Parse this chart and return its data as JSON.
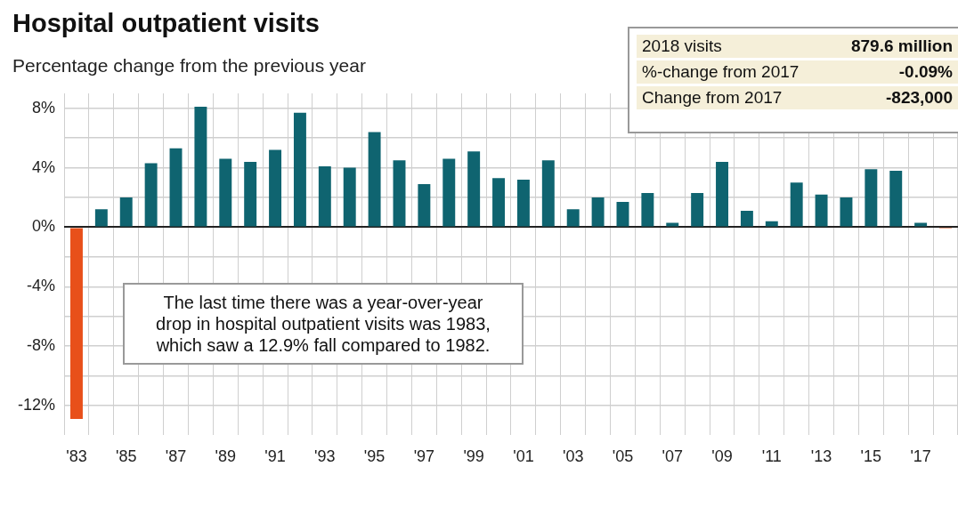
{
  "chart_data": {
    "type": "bar",
    "title": "Hospital outpatient visits",
    "subtitle": "Percentage change from the previous year",
    "categories": [
      "'83",
      null,
      "'85",
      null,
      "'87",
      null,
      "'89",
      null,
      "'91",
      null,
      "'93",
      null,
      "'95",
      null,
      "'97",
      null,
      "'99",
      null,
      "'01",
      null,
      "'03",
      null,
      "'05",
      null,
      "'07",
      null,
      "'09",
      null,
      "'11",
      null,
      "'13",
      null,
      "'15",
      null,
      "'17",
      null
    ],
    "values": [
      -12.9,
      1.2,
      2.0,
      4.3,
      5.3,
      8.1,
      4.6,
      4.4,
      5.2,
      7.7,
      4.1,
      4.0,
      6.4,
      4.5,
      2.9,
      4.6,
      5.1,
      3.3,
      3.2,
      4.5,
      1.2,
      2.0,
      1.7,
      2.3,
      0.3,
      2.3,
      4.4,
      1.1,
      0.4,
      3.0,
      2.2,
      2.0,
      3.9,
      3.8,
      0.3,
      -0.09
    ],
    "colors": [
      "#e8501a",
      "#0f6470",
      "#0f6470",
      "#0f6470",
      "#0f6470",
      "#0f6470",
      "#0f6470",
      "#0f6470",
      "#0f6470",
      "#0f6470",
      "#0f6470",
      "#0f6470",
      "#0f6470",
      "#0f6470",
      "#0f6470",
      "#0f6470",
      "#0f6470",
      "#0f6470",
      "#0f6470",
      "#0f6470",
      "#0f6470",
      "#0f6470",
      "#0f6470",
      "#0f6470",
      "#0f6470",
      "#0f6470",
      "#0f6470",
      "#0f6470",
      "#0f6470",
      "#0f6470",
      "#0f6470",
      "#0f6470",
      "#0f6470",
      "#0f6470",
      "#0f6470",
      "#e8501a"
    ],
    "ylim": [
      -14,
      9
    ],
    "yticks": [
      {
        "value": -12,
        "label": "-12%"
      },
      {
        "value": -10,
        "label": null
      },
      {
        "value": -8,
        "label": "-8%"
      },
      {
        "value": -6,
        "label": null
      },
      {
        "value": -4,
        "label": "-4%"
      },
      {
        "value": -2,
        "label": null
      },
      {
        "value": 0,
        "label": "0%"
      },
      {
        "value": 2,
        "label": null
      },
      {
        "value": 4,
        "label": "4%"
      },
      {
        "value": 6,
        "label": null
      },
      {
        "value": 8,
        "label": "8%"
      }
    ],
    "grid": true,
    "annotations": [
      "The last time there was a year-over-year drop in hospital outpatient visits was 1983, which saw a 12.9% fall compared to 1982.",
      "2018 visits",
      "879.6 million",
      "%-change from 2017",
      "-0.09%",
      "Change from 2017",
      "-823,000"
    ]
  }
}
